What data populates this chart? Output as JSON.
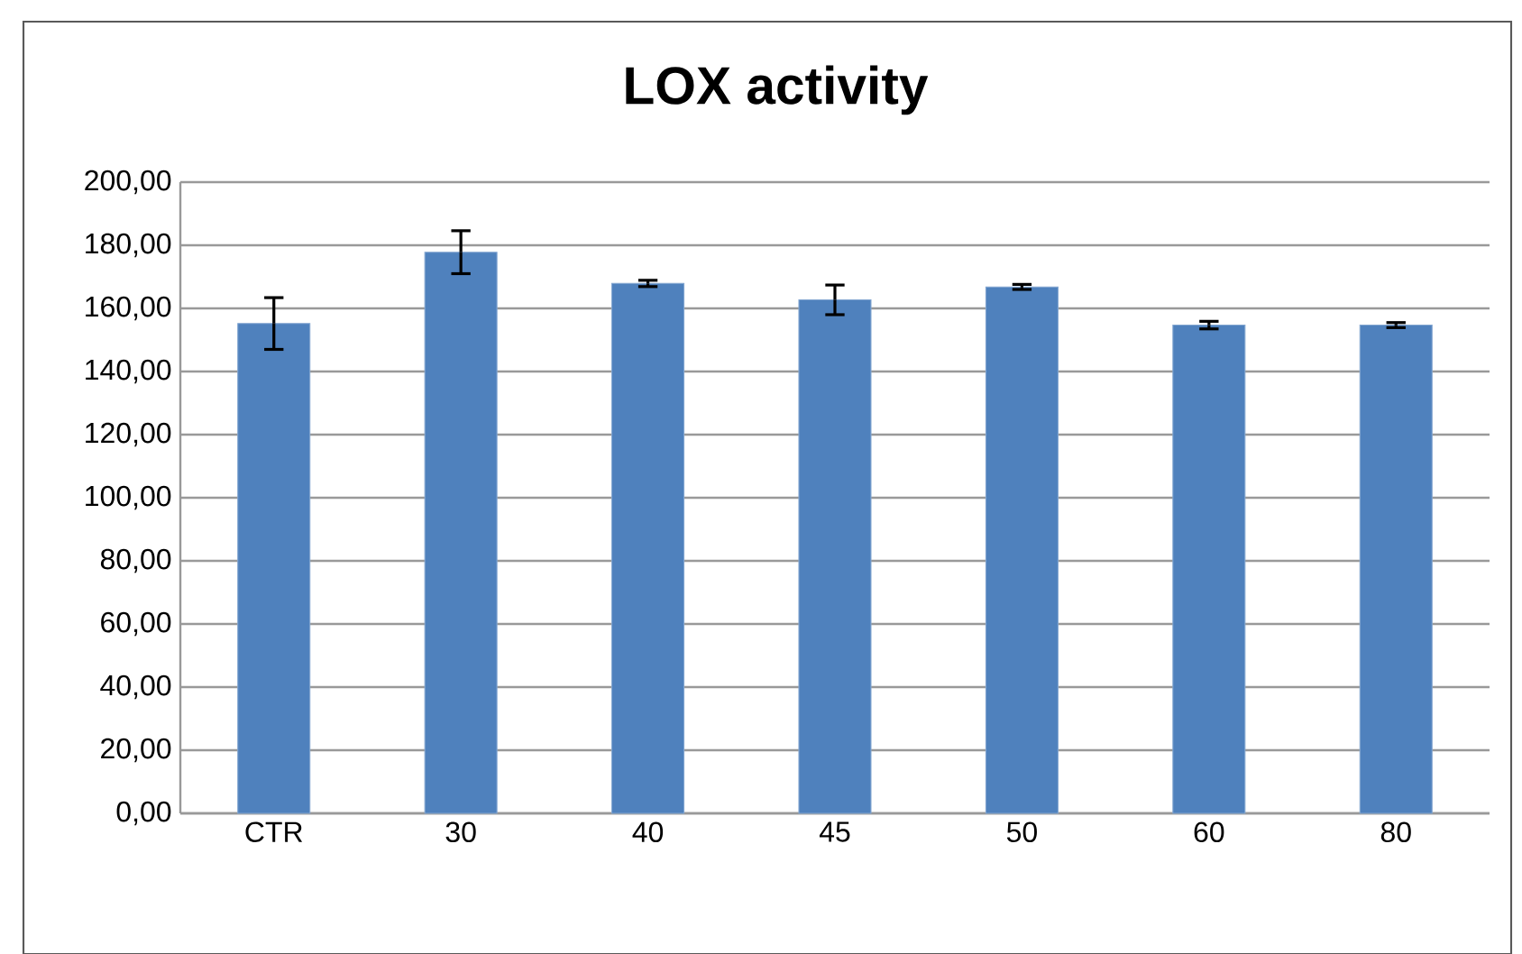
{
  "chart_data": {
    "type": "bar",
    "title": "LOX activity",
    "categories": [
      "CTR",
      "30",
      "40",
      "45",
      "50",
      "60",
      "80"
    ],
    "values": [
      155.2,
      177.8,
      167.9,
      162.7,
      166.8,
      154.7,
      154.7
    ],
    "errors": [
      8.2,
      6.8,
      1,
      4.7,
      0.8,
      1.2,
      0.8
    ],
    "color": "#4f81bd",
    "ylim": [
      0,
      200
    ],
    "yticks": [
      {
        "value": 0,
        "label": "0,00"
      },
      {
        "value": 20,
        "label": "20,00"
      },
      {
        "value": 40,
        "label": "40,00"
      },
      {
        "value": 60,
        "label": "60,00"
      },
      {
        "value": 80,
        "label": "80,00"
      },
      {
        "value": 100,
        "label": "100,00"
      },
      {
        "value": 120,
        "label": "120,00"
      },
      {
        "value": 140,
        "label": "140,00"
      },
      {
        "value": 160,
        "label": "160,00"
      },
      {
        "value": 180,
        "label": "180,00"
      },
      {
        "value": 200,
        "label": "200,00"
      }
    ],
    "grid": "y"
  }
}
